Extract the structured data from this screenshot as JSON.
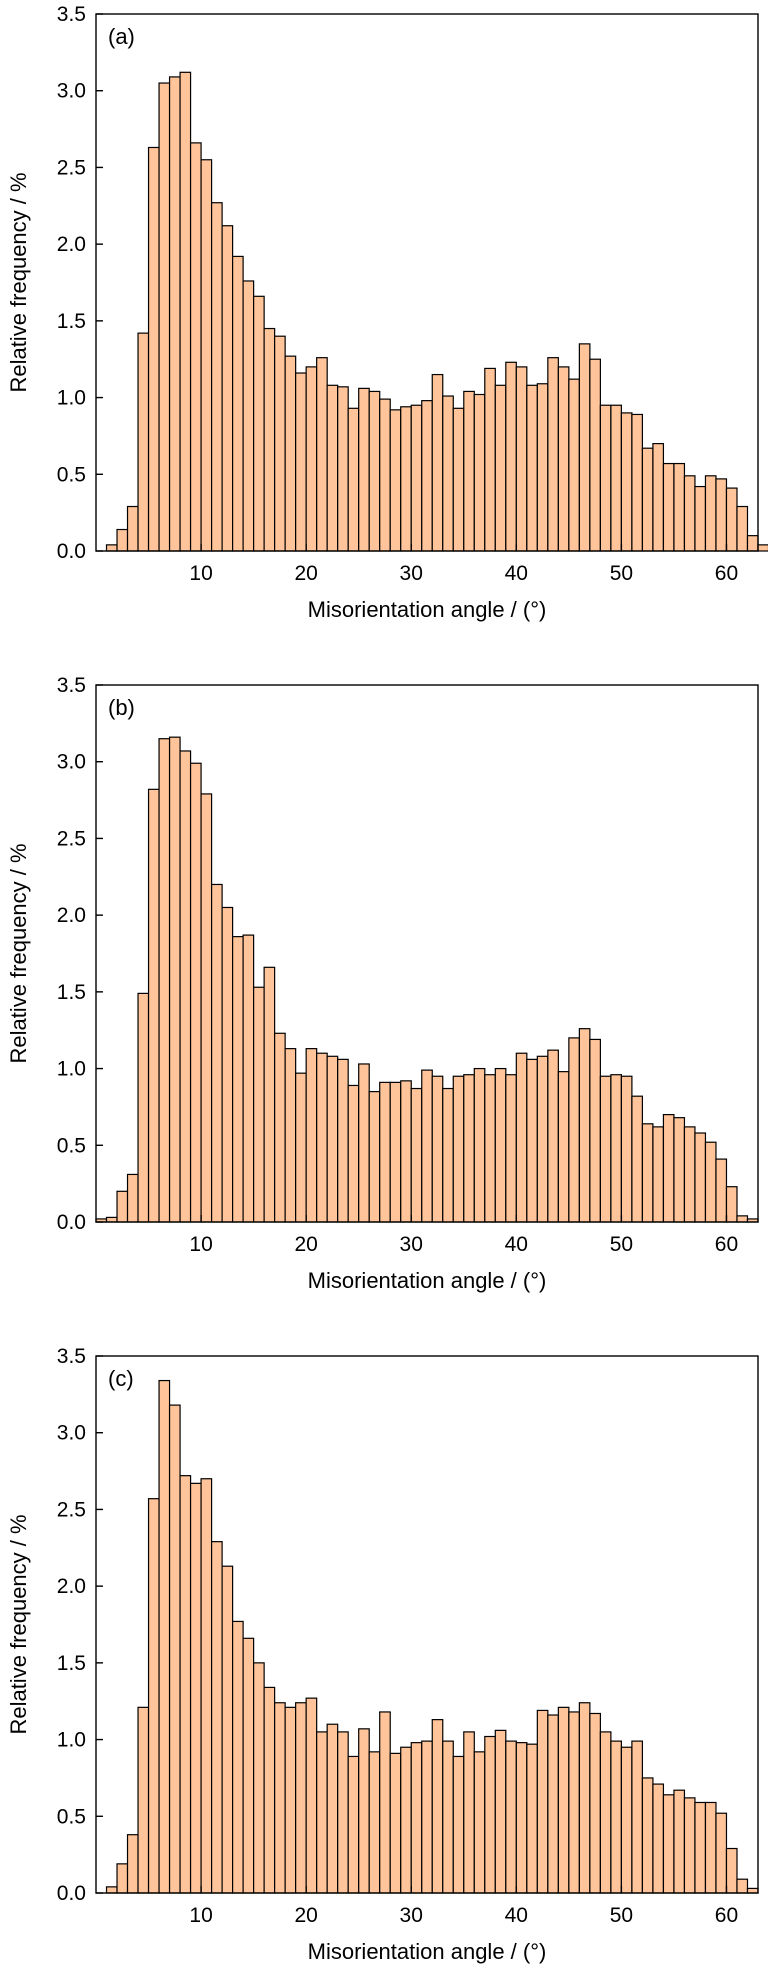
{
  "colors": {
    "bar_fill": "#FFC499",
    "bar_stroke": "#000000",
    "frame": "#000000"
  },
  "chart_data": [
    {
      "type": "bar",
      "panel_label": "(a)",
      "xlabel": "Misorientation angle / (°)",
      "ylabel": "Relative frequency / %",
      "xlim": [
        0,
        63
      ],
      "ylim": [
        0,
        3.5
      ],
      "xticks": [
        10,
        20,
        30,
        40,
        50,
        60
      ],
      "yticks": [
        "0.0",
        "0.5",
        "1.0",
        "1.5",
        "2.0",
        "2.5",
        "3.0",
        "3.5"
      ],
      "bin_width": 1,
      "x_start": 1,
      "values": [
        0.04,
        0.14,
        0.29,
        1.42,
        2.63,
        3.05,
        3.09,
        3.12,
        2.66,
        2.55,
        2.27,
        2.12,
        1.92,
        1.76,
        1.66,
        1.45,
        1.4,
        1.27,
        1.16,
        1.2,
        1.26,
        1.08,
        1.07,
        0.93,
        1.06,
        1.04,
        0.99,
        0.92,
        0.94,
        0.95,
        0.98,
        1.15,
        1.01,
        0.93,
        1.04,
        1.02,
        1.19,
        1.08,
        1.23,
        1.2,
        1.08,
        1.09,
        1.26,
        1.2,
        1.12,
        1.35,
        1.25,
        0.95,
        0.95,
        0.9,
        0.89,
        0.67,
        0.7,
        0.57,
        0.57,
        0.49,
        0.42,
        0.49,
        0.47,
        0.41,
        0.29,
        0.1,
        0.04
      ]
    },
    {
      "type": "bar",
      "panel_label": "(b)",
      "xlabel": "Misorientation angle / (°)",
      "ylabel": "Relative frequency / %",
      "xlim": [
        0,
        63
      ],
      "ylim": [
        0,
        3.5
      ],
      "xticks": [
        10,
        20,
        30,
        40,
        50,
        60
      ],
      "yticks": [
        "0.0",
        "0.5",
        "1.0",
        "1.5",
        "2.0",
        "2.5",
        "3.0",
        "3.5"
      ],
      "bin_width": 1,
      "x_start": 0,
      "values": [
        0.02,
        0.03,
        0.2,
        0.31,
        1.49,
        2.82,
        3.15,
        3.16,
        3.07,
        2.99,
        2.79,
        2.2,
        2.05,
        1.86,
        1.87,
        1.53,
        1.66,
        1.23,
        1.13,
        0.97,
        1.13,
        1.1,
        1.08,
        1.06,
        0.89,
        1.03,
        0.85,
        0.91,
        0.91,
        0.92,
        0.87,
        0.99,
        0.95,
        0.87,
        0.95,
        0.96,
        1.0,
        0.96,
        1.0,
        0.96,
        1.1,
        1.06,
        1.08,
        1.12,
        0.98,
        1.2,
        1.26,
        1.19,
        0.95,
        0.96,
        0.95,
        0.82,
        0.64,
        0.62,
        0.7,
        0.68,
        0.62,
        0.58,
        0.52,
        0.41,
        0.23,
        0.04,
        0.02
      ]
    },
    {
      "type": "bar",
      "panel_label": "(c)",
      "xlabel": "Misorientation angle / (°)",
      "ylabel": "Relative frequency / %",
      "xlim": [
        0,
        63
      ],
      "ylim": [
        0,
        3.5
      ],
      "xticks": [
        10,
        20,
        30,
        40,
        50,
        60
      ],
      "yticks": [
        "0.0",
        "0.5",
        "1.0",
        "1.5",
        "2.0",
        "2.5",
        "3.0",
        "3.5"
      ],
      "bin_width": 1,
      "x_start": 1,
      "values": [
        0.04,
        0.19,
        0.38,
        1.21,
        2.57,
        3.34,
        3.18,
        2.72,
        2.67,
        2.7,
        2.29,
        2.13,
        1.77,
        1.66,
        1.5,
        1.34,
        1.24,
        1.21,
        1.24,
        1.27,
        1.05,
        1.1,
        1.05,
        0.89,
        1.07,
        0.92,
        1.18,
        0.91,
        0.95,
        0.98,
        0.99,
        1.13,
        0.99,
        0.89,
        1.05,
        0.92,
        1.02,
        1.06,
        0.99,
        0.98,
        0.97,
        1.19,
        1.16,
        1.21,
        1.18,
        1.24,
        1.17,
        1.05,
        0.99,
        0.95,
        0.99,
        0.75,
        0.71,
        0.64,
        0.67,
        0.62,
        0.59,
        0.59,
        0.52,
        0.29,
        0.09,
        0.03
      ]
    }
  ]
}
